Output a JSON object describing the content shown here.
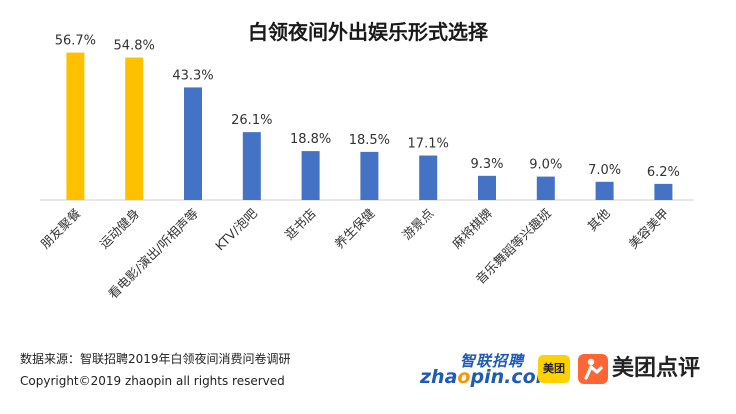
{
  "chart_data": {
    "type": "bar",
    "title": "白领夜间外出娱乐形式选择",
    "categories": [
      "朋友聚餐",
      "运动健身",
      "看电影/演出/听相声等",
      "KTV/泡吧",
      "逛书店",
      "养生保健",
      "游景点",
      "麻将棋牌",
      "音乐舞蹈等兴趣班",
      "其他",
      "美容美甲"
    ],
    "values": [
      56.7,
      54.8,
      43.3,
      26.1,
      18.8,
      18.5,
      17.1,
      9.3,
      9.0,
      7.0,
      6.2
    ],
    "value_labels": [
      "56.7%",
      "54.8%",
      "43.3%",
      "26.1%",
      "18.8%",
      "18.5%",
      "17.1%",
      "9.3%",
      "9.0%",
      "7.0%",
      "6.2%"
    ],
    "highlight_count": 2,
    "colors": {
      "highlight": "#ffc000",
      "normal": "#4472c4",
      "axis": "#d0d0d0"
    },
    "ylim": [
      0,
      60
    ],
    "grid": false,
    "legend": "none"
  },
  "footer": {
    "source": "数据来源：智联招聘2019年白领夜间消费问卷调研",
    "copyright": "Copyright©2019  zhaopin  all  rights  reserved"
  },
  "logos": {
    "zhaopin_cn": "智联招聘",
    "zhaopin_en_a": "zha",
    "zhaopin_en_o": "o",
    "zhaopin_en_b": "pin.com",
    "meituan_badge": "美团",
    "dianping": "美团点评"
  }
}
